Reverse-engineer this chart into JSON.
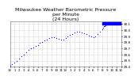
{
  "title": "Milwaukee Weather Barometric Pressure\nper Minute\n(24 Hours)",
  "title_fontsize": 4.5,
  "bg_color": "#ffffff",
  "plot_bg_color": "#ffffff",
  "dot_color": "#0000ff",
  "dot_size": 0.8,
  "line_color": "#0000ff",
  "ylim": [
    29.4,
    30.15
  ],
  "xlim": [
    0,
    1440
  ],
  "yticks": [
    29.4,
    29.5,
    29.6,
    29.7,
    29.8,
    29.9,
    30.0,
    30.1
  ],
  "ytick_labels": [
    "29.4",
    "29.5",
    "29.6",
    "29.7",
    "29.8",
    "29.9",
    "30.0",
    "30.1"
  ],
  "xtick_positions": [
    0,
    60,
    120,
    180,
    240,
    300,
    360,
    420,
    480,
    540,
    600,
    660,
    720,
    780,
    840,
    900,
    960,
    1020,
    1080,
    1140,
    1200,
    1260,
    1320,
    1380,
    1440
  ],
  "xtick_labels": [
    "12",
    "1",
    "2",
    "3",
    "4",
    "5",
    "6",
    "7",
    "8",
    "9",
    "10",
    "11",
    "12",
    "1",
    "2",
    "3",
    "4",
    "5",
    "6",
    "7",
    "8",
    "9",
    "10",
    "11",
    "12"
  ],
  "grid_color": "#cccccc",
  "grid_style": "--",
  "tick_fontsize": 3.0,
  "data_x": [
    0,
    30,
    60,
    90,
    120,
    150,
    180,
    210,
    240,
    270,
    300,
    330,
    360,
    390,
    420,
    450,
    480,
    510,
    540,
    570,
    600,
    630,
    660,
    690,
    720,
    750,
    780,
    810,
    840,
    870,
    900,
    930,
    960,
    990,
    1020,
    1050,
    1080,
    1110,
    1140,
    1170,
    1200,
    1210,
    1220,
    1230,
    1240,
    1250,
    1260,
    1270,
    1280,
    1290,
    1300,
    1310,
    1320,
    1330,
    1340,
    1350,
    1360,
    1370,
    1380,
    1390,
    1400,
    1410,
    1420,
    1430,
    1440
  ],
  "data_y": [
    29.42,
    29.44,
    29.47,
    29.5,
    29.53,
    29.57,
    29.6,
    29.64,
    29.67,
    29.7,
    29.72,
    29.74,
    29.76,
    29.79,
    29.81,
    29.83,
    29.85,
    29.87,
    29.88,
    29.88,
    29.87,
    29.86,
    29.85,
    29.84,
    29.87,
    29.9,
    29.92,
    29.94,
    29.96,
    29.97,
    29.97,
    29.96,
    29.95,
    29.93,
    29.91,
    29.9,
    29.88,
    29.9,
    29.93,
    29.97,
    30.02,
    30.04,
    30.06,
    30.07,
    30.08,
    30.09,
    30.1,
    30.1,
    30.1,
    30.1,
    30.11,
    30.11,
    30.11,
    30.11,
    30.11,
    30.11,
    30.11,
    30.11,
    30.11,
    30.11,
    30.11,
    30.11,
    30.11,
    30.11,
    30.11
  ],
  "highlight_x_start": 1200,
  "highlight_x_end": 1440,
  "highlight_y": 30.11,
  "highlight_color": "#0000ff"
}
